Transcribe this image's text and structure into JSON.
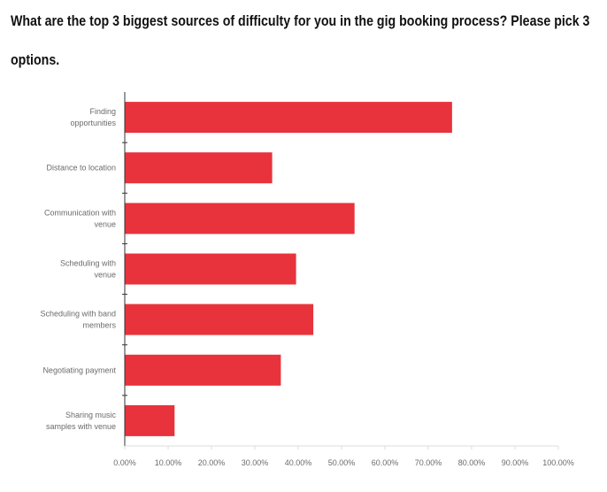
{
  "question": "What are the top 3 biggest sources of difficulty for you in the gig booking process? Please pick 3 options.",
  "colors": {
    "bar": "#e8333c",
    "axis": "#333333",
    "tick": "#dcdcdc",
    "text": "#6b6b6b"
  },
  "chart_data": {
    "type": "bar",
    "orientation": "horizontal",
    "title": "What are the top 3 biggest sources of difficulty for you in the gig booking process? Please pick 3 options.",
    "categories": [
      [
        "Finding",
        "opportunities"
      ],
      [
        "Distance to location"
      ],
      [
        "Communication with",
        "venue"
      ],
      [
        "Scheduling with",
        "venue"
      ],
      [
        "Scheduling with band",
        "members"
      ],
      [
        "Negotiating payment"
      ],
      [
        "Sharing music",
        "samples with venue"
      ]
    ],
    "values": [
      75.5,
      34,
      53,
      39.5,
      43.5,
      36,
      11.5
    ],
    "xlim": [
      0,
      100
    ],
    "xticks": [
      "0.00%",
      "10.00%",
      "20.00%",
      "30.00%",
      "40.00%",
      "50.00%",
      "60.00%",
      "70.00%",
      "80.00%",
      "90.00%",
      "100.00%"
    ],
    "grid": false,
    "legend": "none"
  }
}
